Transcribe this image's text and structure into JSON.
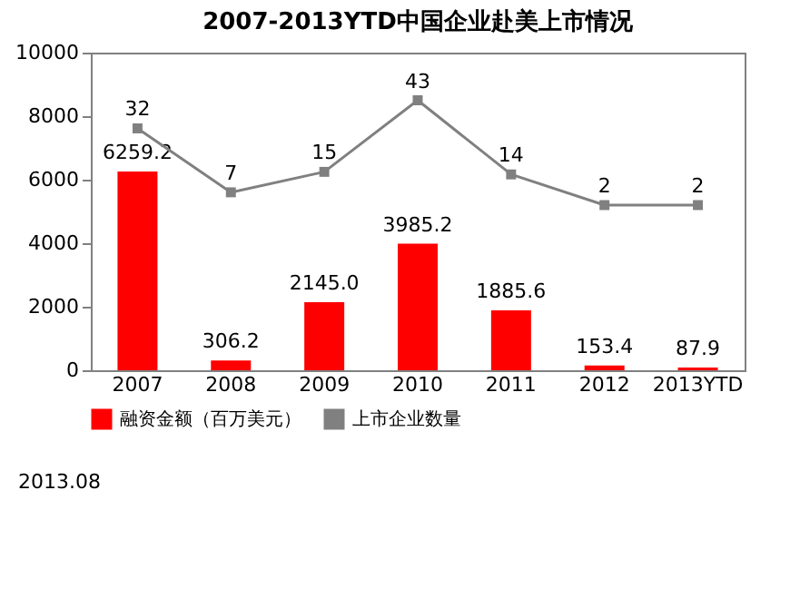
{
  "chart_data": {
    "type": "bar",
    "title": "2007-2013YTD中国企业赴美上市情况",
    "categories": [
      "2007",
      "2008",
      "2009",
      "2010",
      "2011",
      "2012",
      "2013YTD"
    ],
    "series": [
      {
        "name": "融资金额（百万美元）",
        "color": "#ff0000",
        "values": [
          6259.2,
          306.2,
          2145.0,
          3985.2,
          1885.6,
          153.4,
          87.9
        ],
        "value_labels": [
          "6259.2",
          "306.2",
          "2145.0",
          "3985.2",
          "1885.6",
          "153.4",
          "87.9"
        ]
      },
      {
        "name": "上市企业数量",
        "type": "line",
        "axis": "y2",
        "color": "#808080",
        "marker": "square",
        "values": [
          32,
          7,
          15,
          43,
          14,
          2,
          2
        ]
      }
    ],
    "ylim": [
      0,
      10000
    ],
    "yticks": [
      0,
      2000,
      4000,
      6000,
      8000,
      10000
    ],
    "data_labels": true,
    "grid": false,
    "legend": "bottom",
    "annotations": [
      "2013.08"
    ]
  }
}
